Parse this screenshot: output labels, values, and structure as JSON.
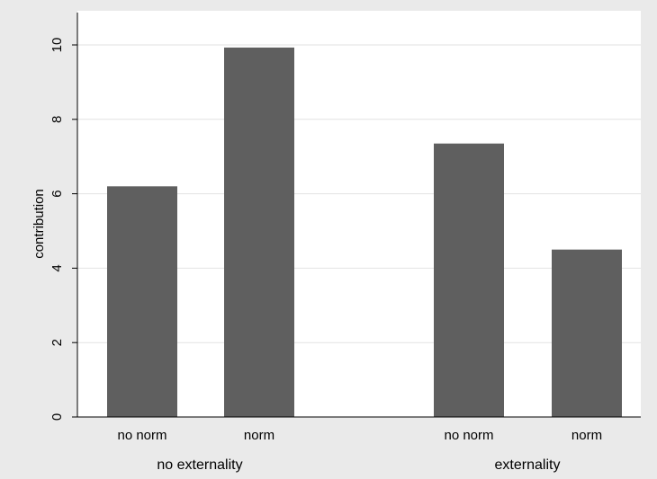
{
  "colors": {
    "outer_background": "#eaeaea",
    "plot_background": "#ffffff",
    "gridline": "#e2e2e2",
    "bar": "#5f5f5f",
    "axis": "#000000"
  },
  "chart_data": {
    "type": "bar",
    "ylabel": "contribution",
    "ylim": [
      0,
      10.5
    ],
    "yticks": [
      "0",
      "2",
      "4",
      "6",
      "8",
      "10"
    ],
    "ytick_values": [
      0,
      2,
      4,
      6,
      8,
      10
    ],
    "grid": true,
    "groups": [
      {
        "label": "no externality",
        "bars": [
          {
            "label": "no norm",
            "value": 6.2
          },
          {
            "label": "norm",
            "value": 9.93
          }
        ]
      },
      {
        "label": "externality",
        "bars": [
          {
            "label": "no norm",
            "value": 7.35
          },
          {
            "label": "norm",
            "value": 4.5
          }
        ]
      }
    ]
  }
}
